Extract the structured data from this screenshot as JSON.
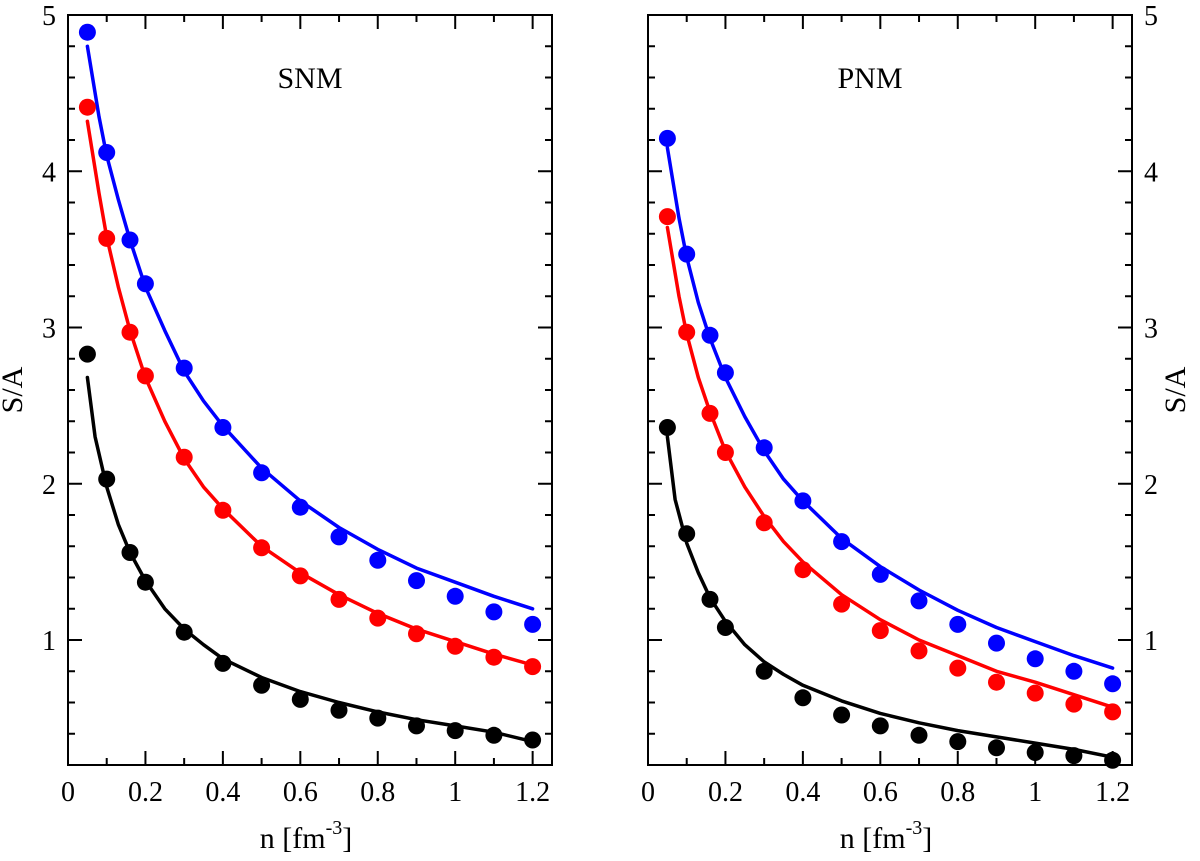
{
  "chart_data": [
    {
      "type": "scatter",
      "title": "SNM",
      "xlabel": "n [fm",
      "xlabel_sup": "-3",
      "xlabel_close": "]",
      "ylabel": "S/A",
      "xlim": [
        0,
        1.25
      ],
      "ylim": [
        0.2,
        5
      ],
      "xticks": [
        0,
        0.2,
        0.4,
        0.6,
        0.8,
        1,
        1.2
      ],
      "xtick_labels": [
        "0",
        "0.2",
        "0.4",
        "0.6",
        "0.8",
        "1",
        "1.2"
      ],
      "yticks": [
        1,
        2,
        3,
        4,
        5
      ],
      "ytick_labels": [
        "1",
        "2",
        "3",
        "4",
        "5"
      ],
      "series": [
        {
          "name": "blue",
          "color": "#0000ff",
          "points_x": [
            0.05,
            0.1,
            0.16,
            0.2,
            0.3,
            0.4,
            0.5,
            0.6,
            0.7,
            0.8,
            0.9,
            1.0,
            1.1,
            1.2
          ],
          "points_y": [
            4.89,
            4.12,
            3.56,
            3.28,
            2.74,
            2.36,
            2.07,
            1.85,
            1.66,
            1.51,
            1.38,
            1.28,
            1.18,
            1.1
          ],
          "line_x": [
            0.05,
            0.08,
            0.1,
            0.13,
            0.16,
            0.2,
            0.25,
            0.3,
            0.35,
            0.4,
            0.5,
            0.6,
            0.7,
            0.8,
            0.9,
            1.0,
            1.1,
            1.2
          ],
          "line_y": [
            4.8,
            4.35,
            4.1,
            3.82,
            3.56,
            3.26,
            2.98,
            2.72,
            2.53,
            2.37,
            2.1,
            1.89,
            1.72,
            1.58,
            1.46,
            1.37,
            1.28,
            1.2
          ]
        },
        {
          "name": "red",
          "color": "#ff0000",
          "points_x": [
            0.05,
            0.1,
            0.16,
            0.2,
            0.3,
            0.4,
            0.5,
            0.6,
            0.7,
            0.8,
            0.9,
            1.0,
            1.1,
            1.2
          ],
          "points_y": [
            4.41,
            3.57,
            2.97,
            2.69,
            2.17,
            1.83,
            1.59,
            1.41,
            1.26,
            1.14,
            1.04,
            0.96,
            0.89,
            0.83
          ],
          "line_x": [
            0.05,
            0.08,
            0.1,
            0.13,
            0.16,
            0.2,
            0.25,
            0.3,
            0.35,
            0.4,
            0.5,
            0.6,
            0.7,
            0.8,
            0.9,
            1.0,
            1.1,
            1.2
          ],
          "line_y": [
            4.32,
            3.86,
            3.58,
            3.26,
            2.98,
            2.68,
            2.4,
            2.16,
            1.98,
            1.84,
            1.6,
            1.43,
            1.29,
            1.17,
            1.07,
            0.99,
            0.91,
            0.84
          ]
        },
        {
          "name": "black",
          "color": "#000000",
          "points_x": [
            0.05,
            0.1,
            0.16,
            0.2,
            0.3,
            0.4,
            0.5,
            0.6,
            0.7,
            0.8,
            0.9,
            1.0,
            1.1,
            1.2
          ],
          "points_y": [
            2.83,
            2.03,
            1.56,
            1.37,
            1.05,
            0.85,
            0.71,
            0.62,
            0.55,
            0.5,
            0.45,
            0.42,
            0.39,
            0.36
          ],
          "line_x": [
            0.05,
            0.07,
            0.1,
            0.13,
            0.16,
            0.2,
            0.25,
            0.3,
            0.35,
            0.4,
            0.5,
            0.6,
            0.7,
            0.8,
            0.9,
            1.0,
            1.1,
            1.2
          ],
          "line_y": [
            2.68,
            2.3,
            1.98,
            1.74,
            1.56,
            1.38,
            1.2,
            1.07,
            0.97,
            0.88,
            0.76,
            0.67,
            0.6,
            0.54,
            0.49,
            0.45,
            0.41,
            0.35
          ]
        }
      ]
    },
    {
      "type": "scatter",
      "title": "PNM",
      "xlabel": "n [fm",
      "xlabel_sup": "-3",
      "xlabel_close": "]",
      "ylabel": "S/A",
      "xlim": [
        0,
        1.25
      ],
      "ylim": [
        0.2,
        5
      ],
      "xticks": [
        0,
        0.2,
        0.4,
        0.6,
        0.8,
        1,
        1.2
      ],
      "xtick_labels": [
        "0",
        "0.2",
        "0.4",
        "0.6",
        "0.8",
        "1",
        "1.2"
      ],
      "yticks": [
        1,
        2,
        3,
        4,
        5
      ],
      "ytick_labels": [
        "1",
        "2",
        "3",
        "4",
        "5"
      ],
      "series": [
        {
          "name": "blue",
          "color": "#0000ff",
          "points_x": [
            0.05,
            0.1,
            0.16,
            0.2,
            0.3,
            0.4,
            0.5,
            0.6,
            0.7,
            0.8,
            0.9,
            1.0,
            1.1,
            1.2
          ],
          "points_y": [
            4.21,
            3.47,
            2.95,
            2.71,
            2.23,
            1.89,
            1.63,
            1.42,
            1.25,
            1.1,
            0.98,
            0.88,
            0.8,
            0.72
          ],
          "line_x": [
            0.05,
            0.08,
            0.1,
            0.13,
            0.16,
            0.2,
            0.25,
            0.3,
            0.35,
            0.4,
            0.5,
            0.6,
            0.7,
            0.8,
            0.9,
            1.0,
            1.1,
            1.2
          ],
          "line_y": [
            4.15,
            3.7,
            3.45,
            3.16,
            2.93,
            2.68,
            2.43,
            2.21,
            2.03,
            1.89,
            1.65,
            1.47,
            1.32,
            1.19,
            1.08,
            0.99,
            0.9,
            0.82
          ]
        },
        {
          "name": "red",
          "color": "#ff0000",
          "points_x": [
            0.05,
            0.1,
            0.16,
            0.2,
            0.3,
            0.4,
            0.5,
            0.6,
            0.7,
            0.8,
            0.9,
            1.0,
            1.1,
            1.2
          ],
          "points_y": [
            3.71,
            2.97,
            2.45,
            2.2,
            1.75,
            1.45,
            1.23,
            1.06,
            0.93,
            0.82,
            0.73,
            0.66,
            0.59,
            0.54
          ],
          "line_x": [
            0.05,
            0.08,
            0.1,
            0.13,
            0.16,
            0.2,
            0.25,
            0.3,
            0.35,
            0.4,
            0.5,
            0.6,
            0.7,
            0.8,
            0.9,
            1.0,
            1.1,
            1.2
          ],
          "line_y": [
            3.64,
            3.2,
            2.96,
            2.68,
            2.46,
            2.21,
            1.98,
            1.79,
            1.63,
            1.5,
            1.29,
            1.13,
            1.0,
            0.9,
            0.8,
            0.73,
            0.65,
            0.57
          ]
        },
        {
          "name": "black",
          "color": "#000000",
          "points_x": [
            0.05,
            0.1,
            0.16,
            0.2,
            0.3,
            0.4,
            0.5,
            0.6,
            0.7,
            0.8,
            0.9,
            1.0,
            1.1,
            1.2
          ],
          "points_y": [
            2.36,
            1.68,
            1.26,
            1.08,
            0.8,
            0.63,
            0.52,
            0.45,
            0.39,
            0.35,
            0.31,
            0.28,
            0.26,
            0.23
          ],
          "line_x": [
            0.05,
            0.07,
            0.1,
            0.13,
            0.16,
            0.2,
            0.25,
            0.3,
            0.35,
            0.4,
            0.5,
            0.6,
            0.7,
            0.8,
            0.9,
            1.0,
            1.1,
            1.2
          ],
          "line_y": [
            2.3,
            1.9,
            1.62,
            1.43,
            1.27,
            1.12,
            0.97,
            0.86,
            0.78,
            0.71,
            0.61,
            0.53,
            0.47,
            0.42,
            0.38,
            0.34,
            0.3,
            0.25
          ]
        }
      ]
    }
  ]
}
